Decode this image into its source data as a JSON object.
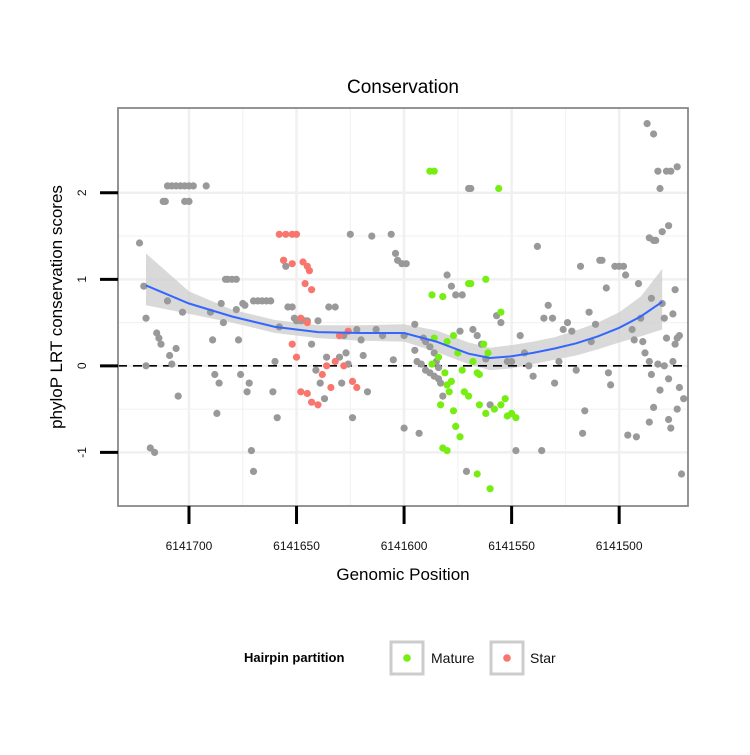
{
  "chart_data": {
    "type": "scatter",
    "title": "Conservation",
    "xlabel": "Genomic Position",
    "ylabel": "phyloP LRT conservation scores",
    "xlim": [
      6141733,
      6141468
    ],
    "ylim": [
      -1.62,
      2.98
    ],
    "x_reversed": true,
    "x_ticks": [
      6141700,
      6141650,
      6141600,
      6141550,
      6141500
    ],
    "x_tick_labels": [
      "6141700",
      "6141650",
      "6141600",
      "6141550",
      "6141500"
    ],
    "y_ticks": [
      -1,
      0,
      1,
      2
    ],
    "y_tick_labels": [
      "-1",
      "0",
      "1",
      "2"
    ],
    "reference_line": {
      "y": 0,
      "style": "dashed"
    },
    "colors": {
      "Other": "#999999",
      "Mature": "#77ee11",
      "Star": "#f8766d",
      "smooth": "#3366ff",
      "band": "#cccccc",
      "panel_border": "#888888",
      "grid": "#f0f0f0"
    },
    "legend": {
      "title": "Hairpin partition",
      "position": "bottom",
      "entries": [
        {
          "label": "Mature",
          "color": "#77ee11"
        },
        {
          "label": "Star",
          "color": "#f8766d"
        }
      ]
    },
    "smooth": {
      "x": [
        6141720,
        6141700,
        6141680,
        6141660,
        6141640,
        6141620,
        6141600,
        6141585,
        6141570,
        6141560,
        6141550,
        6141540,
        6141530,
        6141520,
        6141510,
        6141500,
        6141490,
        6141480
      ],
      "y": [
        0.93,
        0.72,
        0.57,
        0.45,
        0.39,
        0.38,
        0.38,
        0.28,
        0.14,
        0.09,
        0.11,
        0.15,
        0.2,
        0.26,
        0.34,
        0.44,
        0.57,
        0.74
      ],
      "lower": [
        0.7,
        0.6,
        0.5,
        0.38,
        0.32,
        0.29,
        0.28,
        0.16,
        0.02,
        -0.05,
        -0.03,
        0.02,
        0.07,
        0.12,
        0.19,
        0.27,
        0.34,
        0.42
      ],
      "upper": [
        1.3,
        0.86,
        0.65,
        0.53,
        0.47,
        0.47,
        0.48,
        0.41,
        0.27,
        0.21,
        0.24,
        0.28,
        0.33,
        0.41,
        0.5,
        0.62,
        0.8,
        1.12
      ]
    },
    "series": [
      {
        "name": "Other",
        "points": [
          [
            6141723,
            1.42
          ],
          [
            6141721,
            0.92
          ],
          [
            6141720,
            0.55
          ],
          [
            6141720,
            0.0
          ],
          [
            6141718,
            -0.95
          ],
          [
            6141716,
            -1.0
          ],
          [
            6141715,
            0.38
          ],
          [
            6141714,
            0.32
          ],
          [
            6141713,
            0.25
          ],
          [
            6141710,
            0.75
          ],
          [
            6141709,
            0.12
          ],
          [
            6141708,
            0.02
          ],
          [
            6141706,
            0.2
          ],
          [
            6141705,
            -0.35
          ],
          [
            6141703,
            0.62
          ],
          [
            6141712,
            1.9
          ],
          [
            6141711,
            1.9
          ],
          [
            6141710,
            2.08
          ],
          [
            6141708,
            2.08
          ],
          [
            6141706,
            2.08
          ],
          [
            6141704,
            2.08
          ],
          [
            6141702,
            2.08
          ],
          [
            6141700,
            2.08
          ],
          [
            6141698,
            2.08
          ],
          [
            6141702,
            1.9
          ],
          [
            6141700,
            1.9
          ],
          [
            6141692,
            2.08
          ],
          [
            6141690,
            0.62
          ],
          [
            6141689,
            0.3
          ],
          [
            6141688,
            -0.1
          ],
          [
            6141687,
            -0.55
          ],
          [
            6141686,
            -0.2
          ],
          [
            6141685,
            0.72
          ],
          [
            6141684,
            0.5
          ],
          [
            6141683,
            1.0
          ],
          [
            6141682,
            1.0
          ],
          [
            6141680,
            1.0
          ],
          [
            6141678,
            1.0
          ],
          [
            6141678,
            0.65
          ],
          [
            6141677,
            0.3
          ],
          [
            6141676,
            -0.1
          ],
          [
            6141675,
            0.72
          ],
          [
            6141674,
            0.7
          ],
          [
            6141673,
            -0.3
          ],
          [
            6141672,
            -0.2
          ],
          [
            6141671,
            -0.98
          ],
          [
            6141670,
            -1.22
          ],
          [
            6141670,
            0.75
          ],
          [
            6141668,
            0.75
          ],
          [
            6141666,
            0.75
          ],
          [
            6141664,
            0.75
          ],
          [
            6141662,
            0.75
          ],
          [
            6141660,
            0.05
          ],
          [
            6141661,
            -0.3
          ],
          [
            6141659,
            -0.6
          ],
          [
            6141658,
            0.45
          ],
          [
            6141656,
            1.22
          ],
          [
            6141655,
            1.15
          ],
          [
            6141654,
            0.68
          ],
          [
            6141652,
            0.68
          ],
          [
            6141651,
            0.55
          ],
          [
            6141650,
            0.52
          ],
          [
            6141648,
            0.52
          ],
          [
            6141646,
            0.52
          ],
          [
            6141645,
            0.52
          ],
          [
            6141640,
            0.52
          ],
          [
            6141643,
            0.25
          ],
          [
            6141641,
            -0.05
          ],
          [
            6141639,
            -0.2
          ],
          [
            6141637,
            -0.38
          ],
          [
            6141636,
            0.1
          ],
          [
            6141635,
            0.68
          ],
          [
            6141632,
            0.68
          ],
          [
            6141630,
            0.1
          ],
          [
            6141629,
            -0.2
          ],
          [
            6141628,
            0.35
          ],
          [
            6141627,
            0.15
          ],
          [
            6141626,
            0.02
          ],
          [
            6141625,
            1.52
          ],
          [
            6141624,
            -0.6
          ],
          [
            6141622,
            0.42
          ],
          [
            6141620,
            0.3
          ],
          [
            6141619,
            0.12
          ],
          [
            6141617,
            -0.3
          ],
          [
            6141615,
            1.5
          ],
          [
            6141613,
            0.42
          ],
          [
            6141610,
            0.35
          ],
          [
            6141605,
            0.07
          ],
          [
            6141600,
            0.35
          ],
          [
            6141595,
            0.48
          ],
          [
            6141592,
            0.02
          ],
          [
            6141590,
            -0.05
          ],
          [
            6141588,
            -0.08
          ],
          [
            6141586,
            -0.12
          ],
          [
            6141584,
            -0.15
          ],
          [
            6141583,
            -0.2
          ],
          [
            6141582,
            -0.35
          ],
          [
            6141606,
            1.52
          ],
          [
            6141604,
            1.3
          ],
          [
            6141603,
            1.22
          ],
          [
            6141601,
            1.18
          ],
          [
            6141599,
            1.18
          ],
          [
            6141595,
            0.18
          ],
          [
            6141594,
            0.05
          ],
          [
            6141593,
            -0.78
          ],
          [
            6141591,
            0.32
          ],
          [
            6141590,
            0.28
          ],
          [
            6141588,
            0.22
          ],
          [
            6141586,
            0.15
          ],
          [
            6141585,
            0.05
          ],
          [
            6141584,
            -0.02
          ],
          [
            6141580,
            1.05
          ],
          [
            6141578,
            0.92
          ],
          [
            6141576,
            0.82
          ],
          [
            6141574,
            0.4
          ],
          [
            6141573,
            0.82
          ],
          [
            6141571,
            -1.22
          ],
          [
            6141568,
            0.42
          ],
          [
            6141566,
            0.35
          ],
          [
            6141564,
            0.25
          ],
          [
            6141562,
            0.08
          ],
          [
            6141560,
            -0.45
          ],
          [
            6141570,
            2.05
          ],
          [
            6141569,
            2.05
          ],
          [
            6141600,
            -0.72
          ],
          [
            6141557,
            0.58
          ],
          [
            6141555,
            0.5
          ],
          [
            6141552,
            0.05
          ],
          [
            6141550,
            0.05
          ],
          [
            6141548,
            -0.98
          ],
          [
            6141546,
            0.35
          ],
          [
            6141544,
            0.15
          ],
          [
            6141542,
            0.0
          ],
          [
            6141540,
            -0.12
          ],
          [
            6141538,
            1.38
          ],
          [
            6141536,
            -0.98
          ],
          [
            6141535,
            0.55
          ],
          [
            6141533,
            0.7
          ],
          [
            6141531,
            0.55
          ],
          [
            6141530,
            -0.2
          ],
          [
            6141528,
            0.05
          ],
          [
            6141526,
            0.42
          ],
          [
            6141524,
            0.5
          ],
          [
            6141522,
            0.4
          ],
          [
            6141520,
            -0.05
          ],
          [
            6141518,
            1.15
          ],
          [
            6141517,
            -0.78
          ],
          [
            6141516,
            -0.52
          ],
          [
            6141514,
            0.62
          ],
          [
            6141513,
            0.28
          ],
          [
            6141511,
            0.48
          ],
          [
            6141509,
            1.22
          ],
          [
            6141508,
            1.22
          ],
          [
            6141506,
            0.9
          ],
          [
            6141505,
            -0.08
          ],
          [
            6141504,
            -0.22
          ],
          [
            6141502,
            1.15
          ],
          [
            6141500,
            1.15
          ],
          [
            6141498,
            1.15
          ],
          [
            6141497,
            1.05
          ],
          [
            6141496,
            -0.8
          ],
          [
            6141494,
            0.42
          ],
          [
            6141493,
            0.3
          ],
          [
            6141492,
            -0.82
          ],
          [
            6141491,
            0.95
          ],
          [
            6141490,
            0.55
          ],
          [
            6141489,
            0.28
          ],
          [
            6141488,
            0.15
          ],
          [
            6141486,
            0.05
          ],
          [
            6141485,
            0.78
          ],
          [
            6141483,
            1.45
          ],
          [
            6141480,
            0.72
          ],
          [
            6141479,
            0.55
          ],
          [
            6141478,
            0.32
          ],
          [
            6141477,
            -0.62
          ],
          [
            6141485,
            -0.1
          ],
          [
            6141484,
            -0.48
          ],
          [
            6141482,
            0.02
          ],
          [
            6141481,
            -0.28
          ],
          [
            6141479,
            0.0
          ],
          [
            6141477,
            -0.15
          ],
          [
            6141475,
            0.6
          ],
          [
            6141474,
            0.88
          ],
          [
            6141473,
            0.32
          ],
          [
            6141472,
            -0.25
          ],
          [
            6141470,
            -0.38
          ],
          [
            6141471,
            -1.25
          ],
          [
            6141487,
            2.8
          ],
          [
            6141484,
            2.68
          ],
          [
            6141482,
            2.25
          ],
          [
            6141481,
            2.05
          ],
          [
            6141478,
            2.25
          ],
          [
            6141476,
            2.25
          ],
          [
            6141473,
            2.3
          ],
          [
            6141486,
            1.48
          ],
          [
            6141484,
            1.45
          ],
          [
            6141480,
            1.55
          ],
          [
            6141477,
            1.62
          ],
          [
            6141476,
            -0.72
          ],
          [
            6141486,
            -0.65
          ],
          [
            6141475,
            0.05
          ],
          [
            6141474,
            0.25
          ],
          [
            6141473,
            -0.5
          ],
          [
            6141472,
            0.35
          ]
        ]
      },
      {
        "name": "Mature",
        "points": [
          [
            6141588,
            2.25
          ],
          [
            6141586,
            2.25
          ],
          [
            6141556,
            2.05
          ],
          [
            6141587,
            0.82
          ],
          [
            6141582,
            0.8
          ],
          [
            6141570,
            0.95
          ],
          [
            6141569,
            0.95
          ],
          [
            6141562,
            1.0
          ],
          [
            6141555,
            0.62
          ],
          [
            6141586,
            0.32
          ],
          [
            6141580,
            0.28
          ],
          [
            6141577,
            0.35
          ],
          [
            6141575,
            0.15
          ],
          [
            6141568,
            0.05
          ],
          [
            6141566,
            -0.08
          ],
          [
            6141565,
            -0.1
          ],
          [
            6141563,
            0.25
          ],
          [
            6141561,
            0.15
          ],
          [
            6141587,
            0.02
          ],
          [
            6141584,
            0.1
          ],
          [
            6141581,
            -0.08
          ],
          [
            6141580,
            -0.22
          ],
          [
            6141579,
            -0.3
          ],
          [
            6141577,
            -0.52
          ],
          [
            6141576,
            -0.7
          ],
          [
            6141574,
            -0.82
          ],
          [
            6141572,
            -0.3
          ],
          [
            6141570,
            -0.35
          ],
          [
            6141565,
            -0.45
          ],
          [
            6141562,
            -0.55
          ],
          [
            6141558,
            -0.5
          ],
          [
            6141555,
            -0.45
          ],
          [
            6141553,
            -0.38
          ],
          [
            6141552,
            -0.58
          ],
          [
            6141550,
            -0.55
          ],
          [
            6141548,
            -0.6
          ],
          [
            6141566,
            -1.25
          ],
          [
            6141560,
            -1.42
          ],
          [
            6141582,
            -0.95
          ],
          [
            6141580,
            -0.98
          ],
          [
            6141583,
            -0.45
          ],
          [
            6141578,
            -0.18
          ],
          [
            6141573,
            -0.05
          ]
        ]
      },
      {
        "name": "Star",
        "points": [
          [
            6141658,
            1.52
          ],
          [
            6141655,
            1.52
          ],
          [
            6141652,
            1.52
          ],
          [
            6141650,
            1.52
          ],
          [
            6141656,
            1.22
          ],
          [
            6141652,
            1.18
          ],
          [
            6141647,
            1.2
          ],
          [
            6141645,
            1.15
          ],
          [
            6141644,
            1.1
          ],
          [
            6141646,
            0.95
          ],
          [
            6141643,
            0.88
          ],
          [
            6141648,
            0.55
          ],
          [
            6141645,
            0.5
          ],
          [
            6141652,
            0.25
          ],
          [
            6141650,
            0.1
          ],
          [
            6141648,
            -0.3
          ],
          [
            6141645,
            -0.32
          ],
          [
            6141643,
            -0.42
          ],
          [
            6141640,
            -0.45
          ],
          [
            6141638,
            -0.1
          ],
          [
            6141636,
            0.0
          ],
          [
            6141634,
            -0.25
          ],
          [
            6141632,
            0.05
          ],
          [
            6141630,
            0.35
          ],
          [
            6141628,
            0.0
          ],
          [
            6141626,
            0.4
          ],
          [
            6141624,
            -0.18
          ],
          [
            6141622,
            -0.25
          ]
        ]
      }
    ]
  }
}
